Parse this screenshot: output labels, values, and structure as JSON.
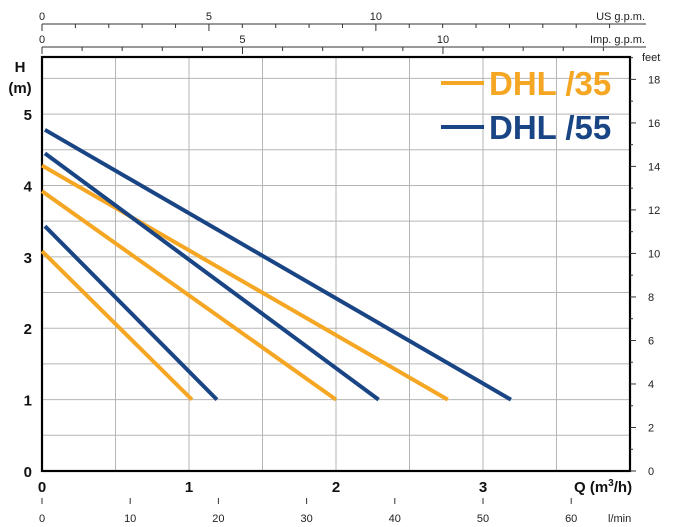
{
  "chart_data": {
    "type": "line",
    "x_axis": {
      "label": "Q (m",
      "label_sup": "3",
      "label_tail": "/h)",
      "range": [
        0,
        4
      ],
      "ticks": [
        {
          "value": 0,
          "label": "0"
        },
        {
          "value": 1,
          "label": "1"
        },
        {
          "value": 2,
          "label": "2"
        },
        {
          "value": 3,
          "label": "3"
        }
      ]
    },
    "y_axis": {
      "title_line1": "H",
      "title_line2": "(m)",
      "range": [
        0,
        5.8
      ],
      "ticks": [
        {
          "value": 0,
          "label": "0"
        },
        {
          "value": 1,
          "label": "1"
        },
        {
          "value": 2,
          "label": "2"
        },
        {
          "value": 3,
          "label": "3"
        },
        {
          "value": 4,
          "label": "4"
        },
        {
          "value": 5,
          "label": "5"
        }
      ]
    },
    "right_axis": {
      "unit": "feet",
      "ticks": [
        {
          "value": 0,
          "label": "0"
        },
        {
          "value": 2,
          "label": "2"
        },
        {
          "value": 4,
          "label": "4"
        },
        {
          "value": 6,
          "label": "6"
        },
        {
          "value": 8,
          "label": "8"
        },
        {
          "value": 10,
          "label": "10"
        },
        {
          "value": 12,
          "label": "12"
        },
        {
          "value": 14,
          "label": "14"
        },
        {
          "value": 16,
          "label": "16"
        },
        {
          "value": 18,
          "label": "18"
        }
      ]
    },
    "top_axis_us": {
      "unit": "US g.p.m.",
      "major": [
        {
          "value": 0,
          "label": "0"
        },
        {
          "value": 5,
          "label": "5"
        },
        {
          "value": 10,
          "label": "10"
        }
      ],
      "minor_step": 1,
      "max": 17
    },
    "top_axis_imp": {
      "unit": "Imp. g.p.m.",
      "major": [
        {
          "value": 0,
          "label": "0"
        },
        {
          "value": 5,
          "label": "5"
        },
        {
          "value": 10,
          "label": "10"
        }
      ],
      "minor_step": 1,
      "max": 14
    },
    "bottom_axis_lmin": {
      "unit": "l/min",
      "ticks": [
        {
          "value": 0,
          "label": "0"
        },
        {
          "value": 10,
          "label": "10"
        },
        {
          "value": 20,
          "label": "20"
        },
        {
          "value": 30,
          "label": "30"
        },
        {
          "value": 40,
          "label": "40"
        },
        {
          "value": 50,
          "label": "50"
        },
        {
          "value": 60,
          "label": "60"
        }
      ]
    },
    "legend": [
      {
        "label": "DHL /35",
        "color": "#f5a623"
      },
      {
        "label": "DHL /55",
        "color": "#1a4585"
      }
    ],
    "legend_position": "top-right",
    "grid": true,
    "series": [
      {
        "family": "DHL /35",
        "color": "#f5a623",
        "x": [
          0,
          1.02
        ],
        "y": [
          3.08,
          1.0
        ]
      },
      {
        "family": "DHL /35",
        "color": "#f5a623",
        "x": [
          0,
          2.0
        ],
        "y": [
          3.92,
          1.0
        ]
      },
      {
        "family": "DHL /35",
        "color": "#f5a623",
        "x": [
          0,
          2.76
        ],
        "y": [
          4.28,
          1.0
        ]
      },
      {
        "family": "DHL /55",
        "color": "#1a4585",
        "x": [
          0.02,
          1.19
        ],
        "y": [
          3.43,
          1.0
        ]
      },
      {
        "family": "DHL /55",
        "color": "#1a4585",
        "x": [
          0.02,
          2.29
        ],
        "y": [
          4.45,
          1.0
        ]
      },
      {
        "family": "DHL /55",
        "color": "#1a4585",
        "x": [
          0.02,
          3.19
        ],
        "y": [
          4.78,
          1.0
        ]
      }
    ]
  }
}
